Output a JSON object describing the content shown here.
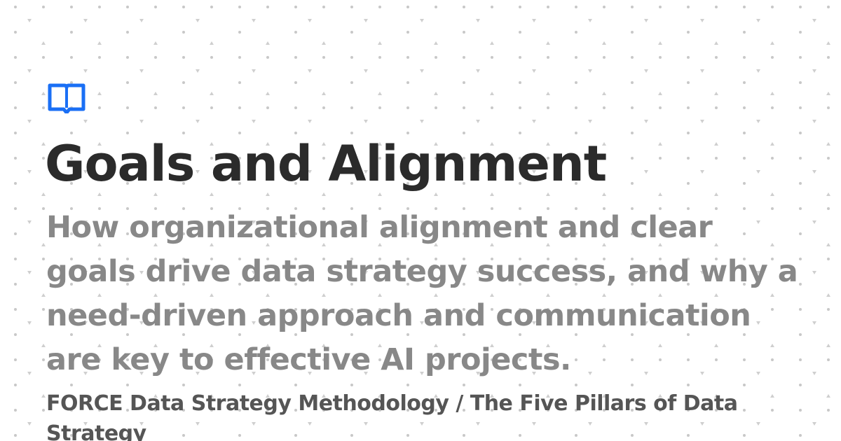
{
  "card": {
    "title": "Goals and Alignment",
    "description": "How organizational alignment and clear goals drive data strategy success, and why a need-driven approach and communication are key to effective AI projects.",
    "breadcrumb": "FORCE Data Strategy Methodology / The Five Pillars of Data Strategy",
    "logo_icon": "open-book-icon"
  },
  "colors": {
    "background": "#ffffff",
    "title": "#2b2b2b",
    "description": "#888888",
    "breadcrumb": "#555555",
    "logo": "#1a6ff5",
    "dots": "#c8c8c8"
  }
}
